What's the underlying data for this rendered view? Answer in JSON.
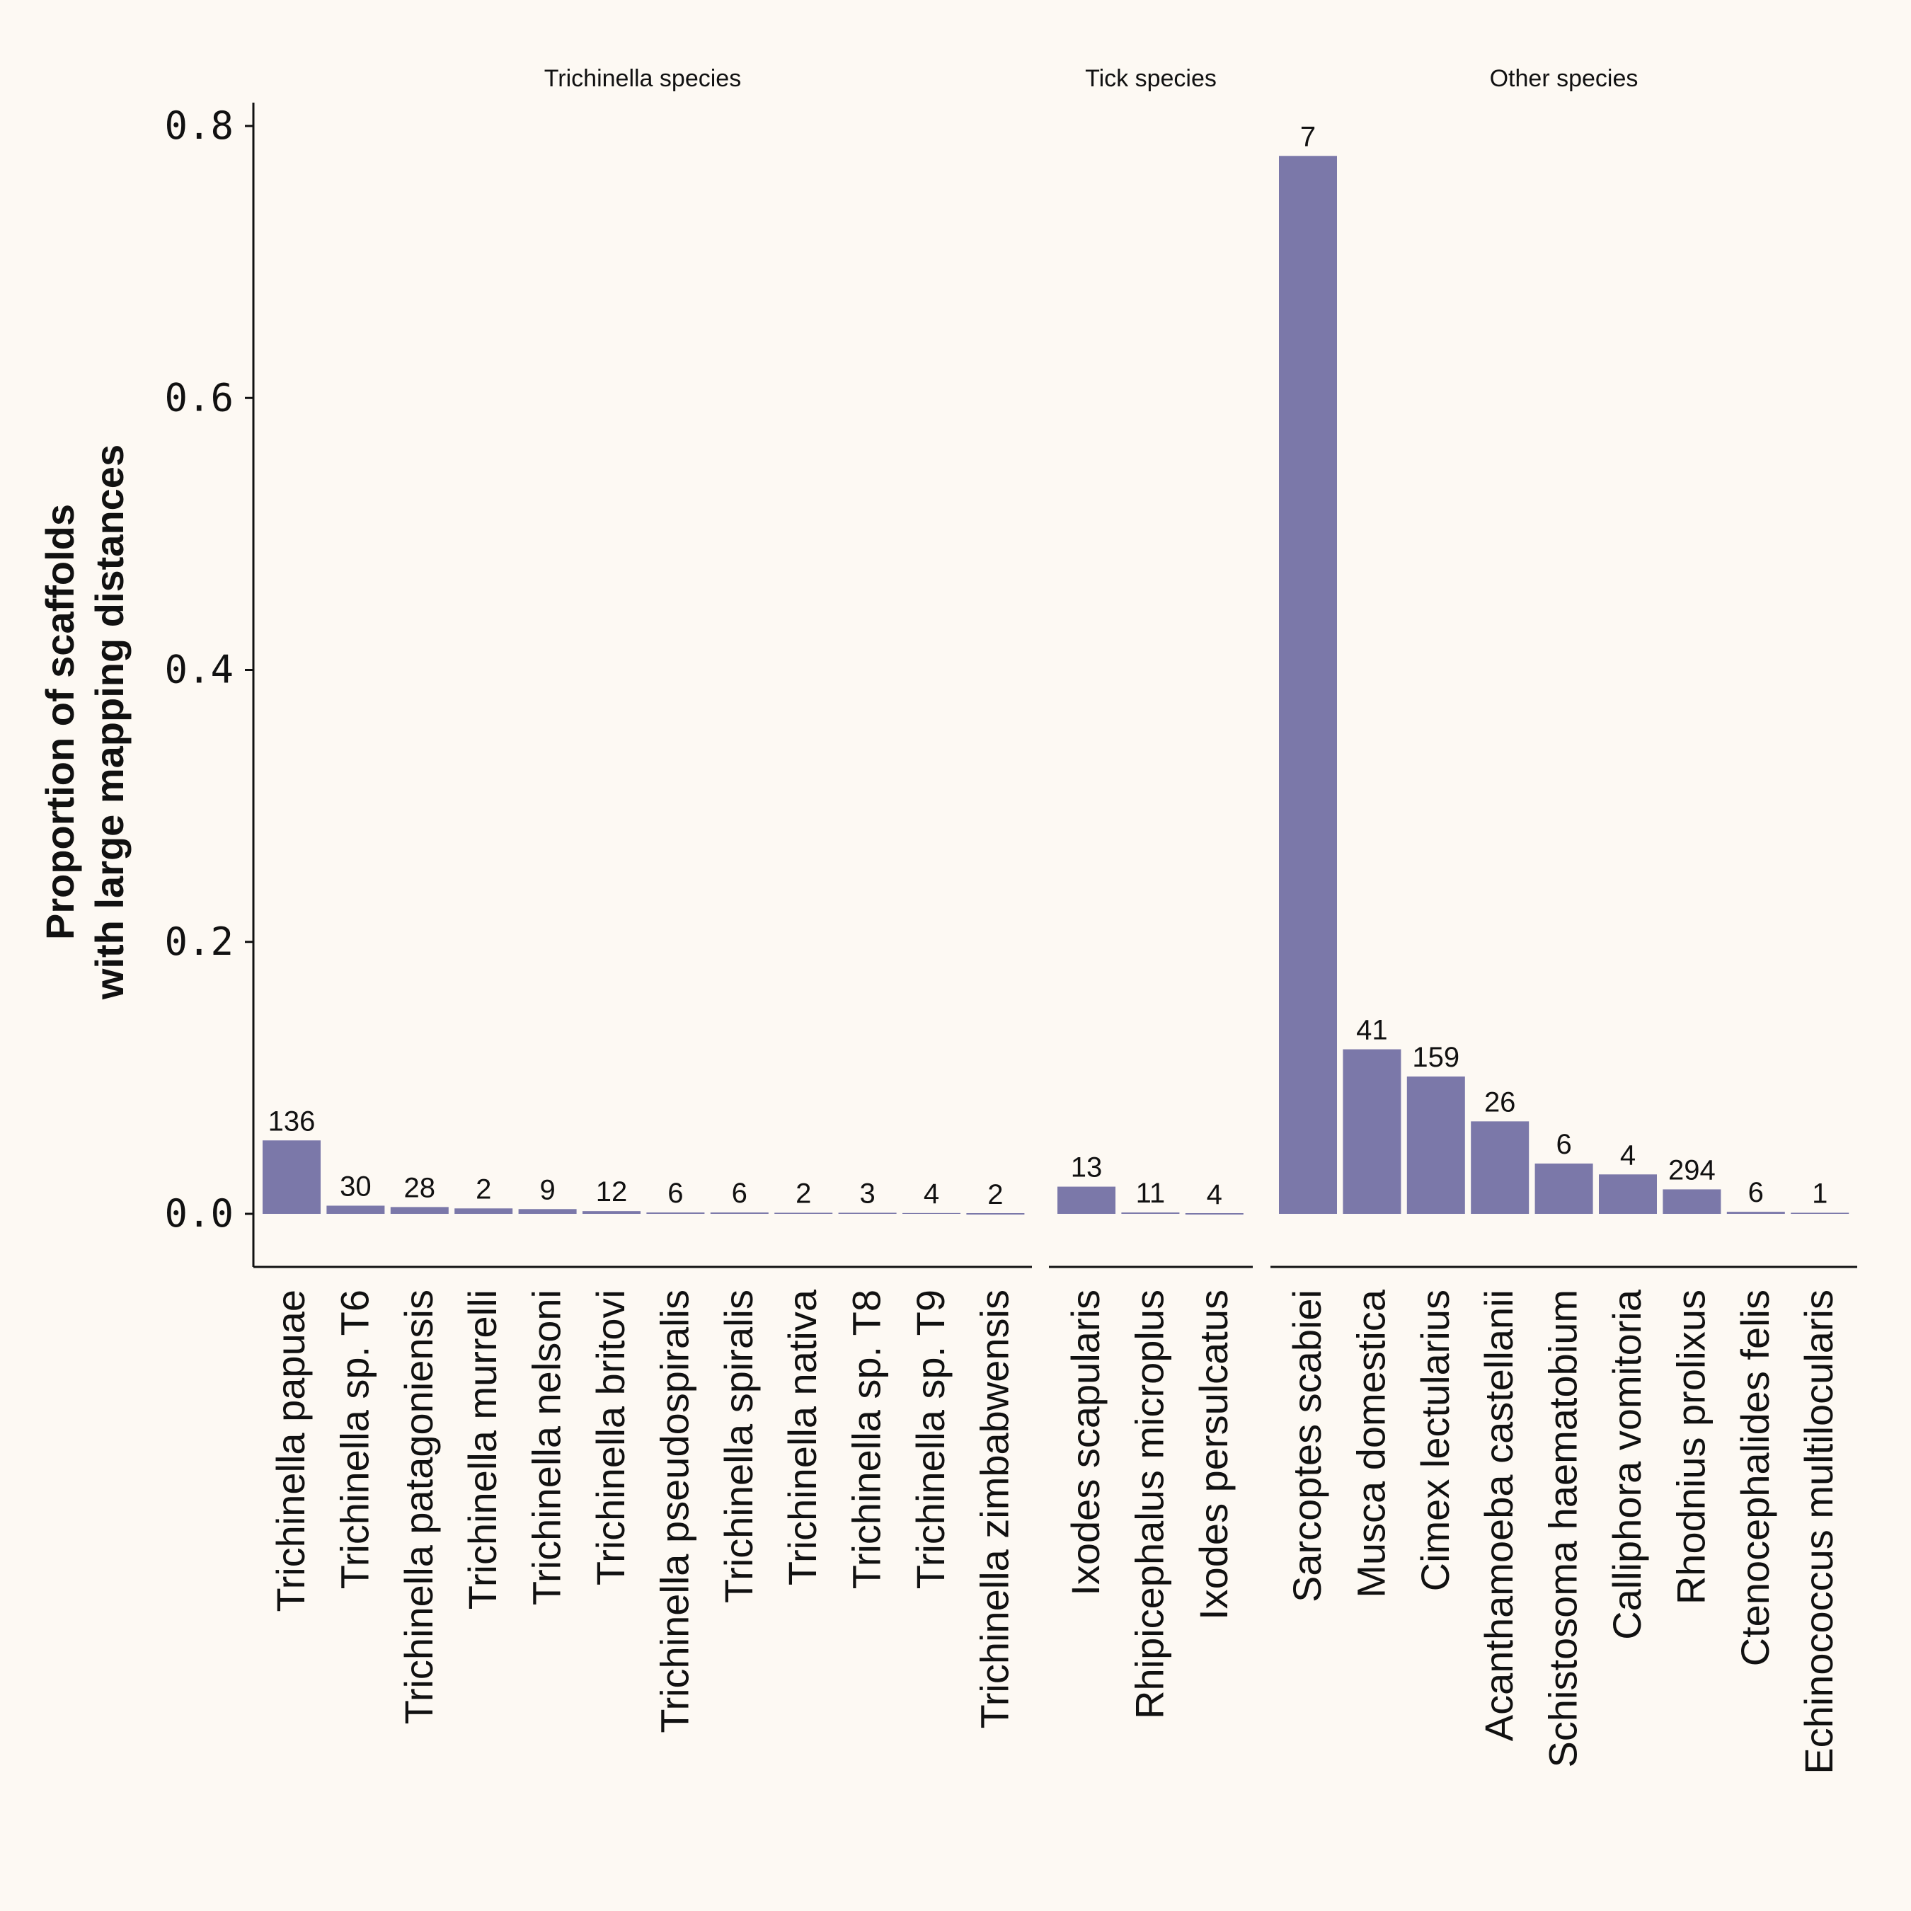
{
  "chart_data": {
    "type": "bar",
    "ylabel": [
      "Proportion of scaffolds",
      "with large mapping distances"
    ],
    "xlabel": "",
    "ylim": [
      0,
      0.8
    ],
    "yticks": [
      "0.0",
      "0.2",
      "0.4",
      "0.6",
      "0.8"
    ],
    "bar_color": "#7b78a9",
    "background": "#fdf9f3",
    "grid": false,
    "facets": [
      {
        "title": "Trichinella species",
        "categories": [
          "Trichinella papuae",
          "Trichinella sp. T6",
          "Trichinella patagoniensis",
          "Trichinella murrelli",
          "Trichinella nelsoni",
          "Trichinella britovi",
          "Trichinella pseudospiralis",
          "Trichinella spiralis",
          "Trichinella nativa",
          "Trichinella sp. T8",
          "Trichinella sp. T9",
          "Trichinella zimbabwensis"
        ],
        "values": [
          0.054,
          0.006,
          0.005,
          0.004,
          0.0035,
          0.002,
          0.001,
          0.001,
          0.0008,
          0.0008,
          0.0006,
          0
        ],
        "labels": [
          "136",
          "30",
          "28",
          "2",
          "9",
          "12",
          "6",
          "6",
          "2",
          "3",
          "4",
          "2"
        ]
      },
      {
        "title": "Tick species",
        "categories": [
          "Ixodes scapularis",
          "Rhipicephalus microplus",
          "Ixodes persulcatus"
        ],
        "values": [
          0.02,
          0.001,
          0
        ],
        "labels": [
          "13",
          "11",
          "4"
        ]
      },
      {
        "title": "Other species",
        "categories": [
          "Sarcoptes scabiei",
          "Musca domestica",
          "Cimex lectularius",
          "Acanthamoeba castellanii",
          "Schistosoma haematobium",
          "Calliphora vomitoria",
          "Rhodnius prolixus",
          "Ctenocephalides felis",
          "Echinococcus multilocularis"
        ],
        "values": [
          0.778,
          0.121,
          0.101,
          0.068,
          0.037,
          0.029,
          0.018,
          0.0015,
          0.0008
        ],
        "labels": [
          "7",
          "41",
          "159",
          "26",
          "6",
          "4",
          "294",
          "6",
          "1"
        ]
      }
    ]
  }
}
